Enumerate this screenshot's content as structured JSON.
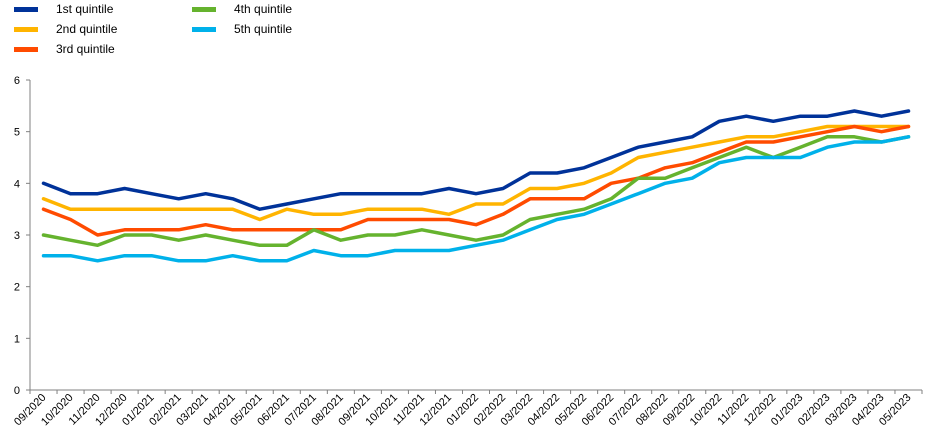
{
  "chart_data": {
    "type": "line",
    "title": "",
    "xlabel": "",
    "ylabel": "",
    "ylim": [
      0,
      6
    ],
    "yticks": [
      0,
      1,
      2,
      3,
      4,
      5,
      6
    ],
    "grid": false,
    "legend_position": "top-left",
    "categories": [
      "09/2020",
      "10/2020",
      "11/2020",
      "12/2020",
      "01/2021",
      "02/2021",
      "03/2021",
      "04/2021",
      "05/2021",
      "06/2021",
      "07/2021",
      "08/2021",
      "09/2021",
      "10/2021",
      "11/2021",
      "12/2021",
      "01/2022",
      "02/2022",
      "03/2022",
      "04/2022",
      "05/2022",
      "06/2022",
      "07/2022",
      "08/2022",
      "09/2022",
      "10/2022",
      "11/2022",
      "12/2022",
      "01/2023",
      "02/2023",
      "03/2023",
      "04/2023",
      "05/2023"
    ],
    "series": [
      {
        "name": "1st quintile",
        "color": "#003299",
        "values": [
          4.0,
          3.8,
          3.8,
          3.9,
          3.8,
          3.7,
          3.8,
          3.7,
          3.5,
          3.6,
          3.7,
          3.8,
          3.8,
          3.8,
          3.8,
          3.9,
          3.8,
          3.9,
          4.2,
          4.2,
          4.3,
          4.5,
          4.7,
          4.8,
          4.9,
          5.2,
          5.3,
          5.2,
          5.3,
          5.3,
          5.4,
          5.3,
          5.4
        ]
      },
      {
        "name": "2nd quintile",
        "color": "#FFB400",
        "values": [
          3.7,
          3.5,
          3.5,
          3.5,
          3.5,
          3.5,
          3.5,
          3.5,
          3.3,
          3.5,
          3.4,
          3.4,
          3.5,
          3.5,
          3.5,
          3.4,
          3.6,
          3.6,
          3.9,
          3.9,
          4.0,
          4.2,
          4.5,
          4.6,
          4.7,
          4.8,
          4.9,
          4.9,
          5.0,
          5.1,
          5.1,
          5.1,
          5.1
        ]
      },
      {
        "name": "3rd quintile",
        "color": "#FF4B00",
        "values": [
          3.5,
          3.3,
          3.0,
          3.1,
          3.1,
          3.1,
          3.2,
          3.1,
          3.1,
          3.1,
          3.1,
          3.1,
          3.3,
          3.3,
          3.3,
          3.3,
          3.2,
          3.4,
          3.7,
          3.7,
          3.7,
          4.0,
          4.1,
          4.3,
          4.4,
          4.6,
          4.8,
          4.8,
          4.9,
          5.0,
          5.1,
          5.0,
          5.1
        ]
      },
      {
        "name": "4th quintile",
        "color": "#65B32E",
        "values": [
          3.0,
          2.9,
          2.8,
          3.0,
          3.0,
          2.9,
          3.0,
          2.9,
          2.8,
          2.8,
          3.1,
          2.9,
          3.0,
          3.0,
          3.1,
          3.0,
          2.9,
          3.0,
          3.3,
          3.4,
          3.5,
          3.7,
          4.1,
          4.1,
          4.3,
          4.5,
          4.7,
          4.5,
          4.7,
          4.9,
          4.9,
          4.8,
          4.9
        ]
      },
      {
        "name": "5th quintile",
        "color": "#00B1EA",
        "values": [
          2.6,
          2.6,
          2.5,
          2.6,
          2.6,
          2.5,
          2.5,
          2.6,
          2.5,
          2.5,
          2.7,
          2.6,
          2.6,
          2.7,
          2.7,
          2.7,
          2.8,
          2.9,
          3.1,
          3.3,
          3.4,
          3.6,
          3.8,
          4.0,
          4.1,
          4.4,
          4.5,
          4.5,
          4.5,
          4.7,
          4.8,
          4.8,
          4.9
        ]
      }
    ]
  }
}
